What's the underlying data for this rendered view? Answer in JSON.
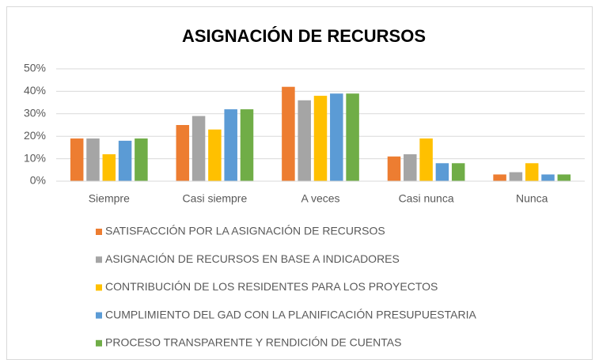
{
  "chart_data": {
    "type": "bar",
    "title": "ASIGNACIÓN DE RECURSOS",
    "categories": [
      "Siempre",
      "Casi siempre",
      "A veces",
      "Casi nunca",
      "Nunca"
    ],
    "series": [
      {
        "name": "SATISFACCIÓN POR LA ASIGNACIÓN DE RECURSOS",
        "color": "#ed7d31",
        "values": [
          19,
          25,
          42,
          11,
          3
        ]
      },
      {
        "name": "ASIGNACIÓN DE RECURSOS EN BASE A INDICADORES",
        "color": "#a5a5a5",
        "values": [
          19,
          29,
          36,
          12,
          4
        ]
      },
      {
        "name": "CONTRIBUCIÓN DE LOS RESIDENTES PARA LOS PROYECTOS",
        "color": "#ffc000",
        "values": [
          12,
          23,
          38,
          19,
          8
        ]
      },
      {
        "name": "CUMPLIMIENTO DEL GAD CON LA PLANIFICACIÓN PRESUPUESTARIA",
        "color": "#5b9bd5",
        "values": [
          18,
          32,
          39,
          8,
          3
        ]
      },
      {
        "name": "PROCESO TRANSPARENTE Y RENDICIÓN DE CUENTAS",
        "color": "#70ad47",
        "values": [
          19,
          32,
          39,
          8,
          3
        ]
      }
    ],
    "ylim": [
      0,
      50
    ],
    "yticks": [
      {
        "value": 0,
        "label": "0%"
      },
      {
        "value": 10,
        "label": "10%"
      },
      {
        "value": 20,
        "label": "20%"
      },
      {
        "value": 30,
        "label": "30%"
      },
      {
        "value": 40,
        "label": "40%"
      },
      {
        "value": 50,
        "label": "50%"
      }
    ],
    "grid": true,
    "legend": "bottom"
  }
}
